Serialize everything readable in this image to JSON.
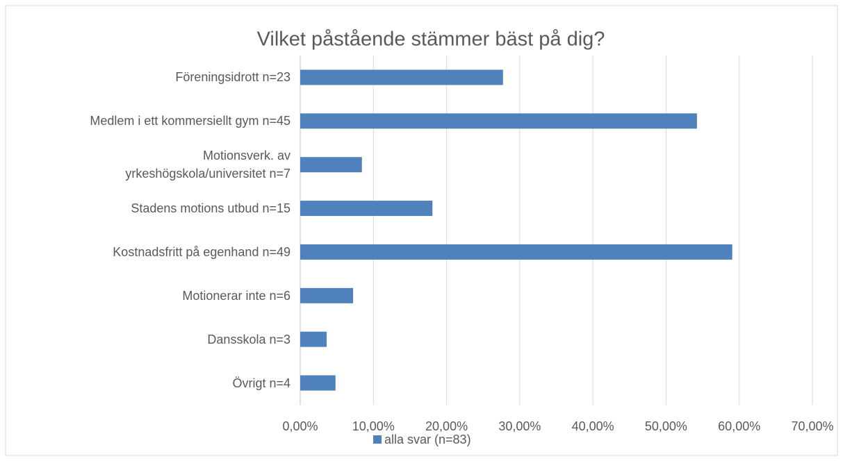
{
  "chart_data": {
    "type": "bar",
    "orientation": "horizontal",
    "title": "Vilket påstående stämmer bäst på dig?",
    "categories": [
      "Föreningsidrott n=23",
      "Medlem i ett kommersiellt gym n=45",
      "Motionsverk. av\nyrkeshögskola/universitet n=7",
      "Stadens motions utbud n=15",
      "Kostnadsfritt på egenhand n=49",
      "Motionerar inte n=6",
      "Dansskola n=3",
      "Övrigt n=4"
    ],
    "series": [
      {
        "name": "alla svar (n=83)",
        "color": "#4f81bd",
        "values": [
          27.71,
          54.22,
          8.43,
          18.07,
          59.04,
          7.23,
          3.61,
          4.82
        ]
      }
    ],
    "xlim": [
      0,
      70
    ],
    "xticks": [
      {
        "value": 0,
        "label": "0,00%"
      },
      {
        "value": 10,
        "label": "10,00%"
      },
      {
        "value": 20,
        "label": "20,00%"
      },
      {
        "value": 30,
        "label": "30,00%"
      },
      {
        "value": 40,
        "label": "40,00%"
      },
      {
        "value": 50,
        "label": "50,00%"
      },
      {
        "value": 60,
        "label": "60,00%"
      },
      {
        "value": 70,
        "label": "70,00%"
      }
    ],
    "grid": true,
    "legend": "bottom"
  }
}
